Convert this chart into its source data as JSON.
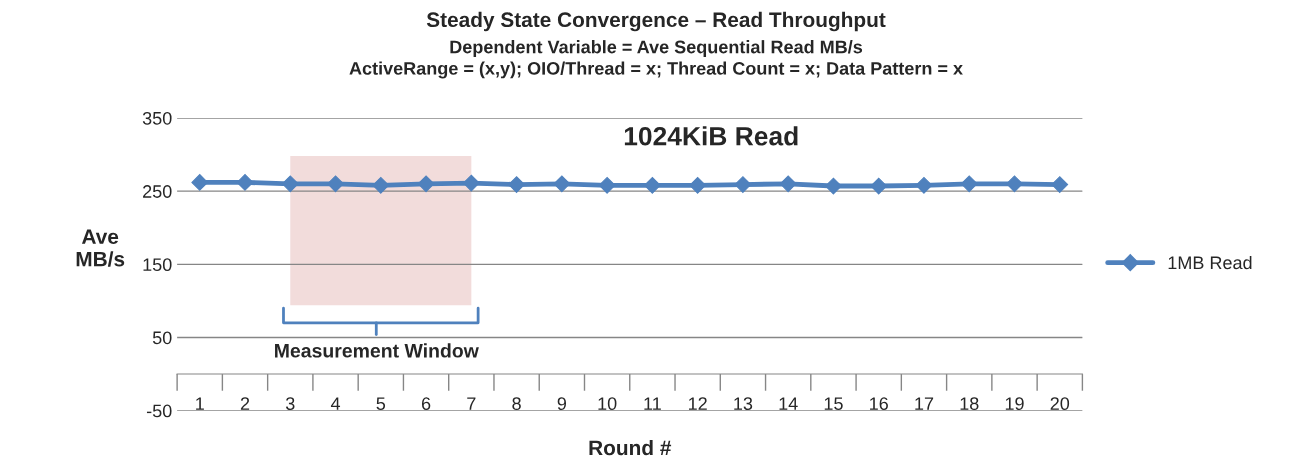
{
  "chart_data": {
    "type": "line",
    "title": "Steady State Convergence – Read Throughput",
    "subtitle": "Dependent Variable = Ave Sequential Read MB/s\nActiveRange = (x,y); OIO/Thread = x; Thread Count = x; Data Pattern = x",
    "xlabel": "Round #",
    "ylabel": "Ave\nMB/s",
    "categories": [
      "1",
      "2",
      "3",
      "4",
      "5",
      "6",
      "7",
      "8",
      "9",
      "10",
      "11",
      "12",
      "13",
      "14",
      "15",
      "16",
      "17",
      "18",
      "19",
      "20"
    ],
    "series": [
      {
        "name": "1MB Read",
        "color": "#4f81bd",
        "values": [
          262,
          262,
          260,
          260,
          258,
          260,
          261,
          259,
          260,
          258,
          258,
          258,
          259,
          260,
          257,
          257,
          258,
          260,
          260,
          259
        ]
      }
    ],
    "ylim": [
      -50,
      350
    ],
    "yticks": [
      -50,
      50,
      150,
      250,
      350
    ],
    "grid": "y",
    "legend": "right",
    "marker": "diamond",
    "annotations": [
      "1024KiB Read"
    ],
    "bands": [
      {
        "axis": "x",
        "from": "3",
        "to": "7",
        "label": "Measurement Window",
        "color": "#f2dcdb"
      }
    ]
  }
}
